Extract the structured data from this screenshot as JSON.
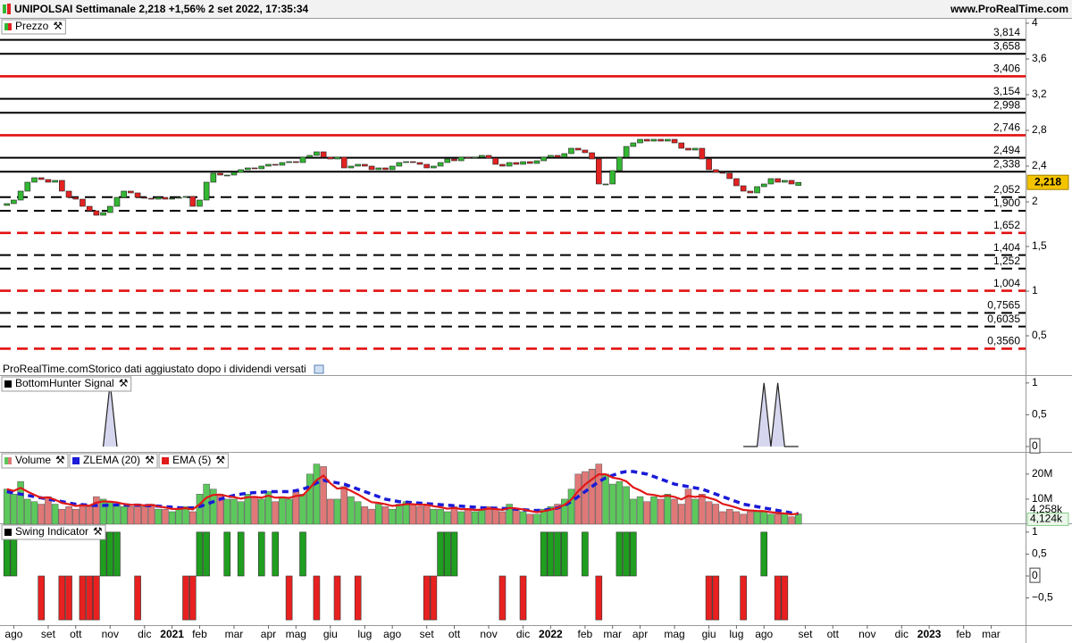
{
  "header": {
    "title": "UNIPOLSAI Settimanale 2,218 +1,56% 2 set 2022, 17:35:34",
    "site": "www.ProRealTime.com"
  },
  "chart_data": [
    {
      "type": "candlestick",
      "title": "Prezzo",
      "note": "ProRealTime.comStorico dati aggiustato dopo i dividendi versati",
      "up_color": "#33b833",
      "down_color": "#e32222",
      "xlim": [
        -1,
        148
      ],
      "ylim": [
        0.06,
        4.06
      ],
      "yticks": [
        4,
        {
          "value": 3.6,
          "label": "3,6"
        },
        {
          "value": 3.2,
          "label": "3,2"
        },
        {
          "value": 2.8,
          "label": "2,8"
        },
        {
          "value": 2.4,
          "label": "2,4"
        },
        2,
        {
          "value": 1.5,
          "label": "1,5"
        },
        1,
        {
          "value": 0.5,
          "label": "0,5"
        }
      ],
      "open": [
        1.96,
        1.98,
        2.02,
        2.12,
        2.22,
        2.27,
        2.25,
        2.22,
        2.24,
        2.12,
        2.05,
        2.03,
        1.95,
        1.9,
        1.85,
        1.88,
        1.95,
        2.05,
        2.12,
        2.1,
        2.05,
        2.04,
        2.03,
        2.05,
        2.03,
        2.04,
        2.05,
        2.06,
        1.95,
        2.02,
        2.22,
        2.32,
        2.3,
        2.3,
        2.33,
        2.36,
        2.38,
        2.37,
        2.4,
        2.42,
        2.41,
        2.44,
        2.45,
        2.44,
        2.5,
        2.52,
        2.56,
        2.5,
        2.48,
        2.5,
        2.38,
        2.4,
        2.42,
        2.4,
        2.36,
        2.38,
        2.36,
        2.4,
        2.44,
        2.45,
        2.44,
        2.42,
        2.38,
        2.4,
        2.44,
        2.48,
        2.46,
        2.5,
        2.49,
        2.5,
        2.52,
        2.49,
        2.42,
        2.4,
        2.44,
        2.42,
        2.45,
        2.43,
        2.46,
        2.5,
        2.52,
        2.5,
        2.54,
        2.6,
        2.58,
        2.55,
        2.48,
        2.2,
        2.2,
        2.35,
        2.5,
        2.62,
        2.66,
        2.7,
        2.68,
        2.7,
        2.68,
        2.7,
        2.66,
        2.6,
        2.58,
        2.6,
        2.48,
        2.36,
        2.33,
        2.32,
        2.26,
        2.18,
        2.12,
        2.1,
        2.17,
        2.2,
        2.26,
        2.22,
        2.24,
        2.184
      ],
      "close": [
        1.98,
        2.02,
        2.12,
        2.22,
        2.27,
        2.25,
        2.22,
        2.24,
        2.12,
        2.05,
        2.03,
        1.95,
        1.9,
        1.85,
        1.88,
        1.95,
        2.05,
        2.12,
        2.1,
        2.05,
        2.04,
        2.03,
        2.05,
        2.03,
        2.04,
        2.05,
        2.06,
        1.95,
        2.02,
        2.22,
        2.32,
        2.3,
        2.3,
        2.33,
        2.36,
        2.38,
        2.37,
        2.4,
        2.42,
        2.41,
        2.44,
        2.45,
        2.44,
        2.5,
        2.52,
        2.56,
        2.5,
        2.48,
        2.5,
        2.38,
        2.4,
        2.42,
        2.4,
        2.36,
        2.38,
        2.36,
        2.4,
        2.44,
        2.45,
        2.44,
        2.42,
        2.38,
        2.4,
        2.44,
        2.48,
        2.46,
        2.5,
        2.49,
        2.5,
        2.52,
        2.49,
        2.42,
        2.4,
        2.44,
        2.42,
        2.45,
        2.43,
        2.46,
        2.5,
        2.52,
        2.5,
        2.54,
        2.6,
        2.58,
        2.55,
        2.48,
        2.2,
        2.2,
        2.35,
        2.5,
        2.62,
        2.66,
        2.7,
        2.68,
        2.7,
        2.68,
        2.7,
        2.66,
        2.6,
        2.58,
        2.6,
        2.48,
        2.36,
        2.33,
        2.32,
        2.26,
        2.18,
        2.12,
        2.1,
        2.17,
        2.2,
        2.26,
        2.22,
        2.24,
        2.2,
        2.218
      ],
      "last_label": "2,218",
      "levels": [
        {
          "value": 3.814,
          "label": "3,814",
          "color": "#000000",
          "dashed": false
        },
        {
          "value": 3.658,
          "label": "3,658",
          "color": "#000000",
          "dashed": false
        },
        {
          "value": 3.406,
          "label": "3,406",
          "color": "#e31010",
          "dashed": false
        },
        {
          "value": 3.154,
          "label": "3,154",
          "color": "#000000",
          "dashed": false
        },
        {
          "value": 2.998,
          "label": "2,998",
          "color": "#000000",
          "dashed": false
        },
        {
          "value": 2.746,
          "label": "2,746",
          "color": "#e31010",
          "dashed": false
        },
        {
          "value": 2.494,
          "label": "2,494",
          "color": "#000000",
          "dashed": false
        },
        {
          "value": 2.338,
          "label": "2,338",
          "color": "#000000",
          "dashed": false
        },
        {
          "value": 2.052,
          "label": "2,052",
          "color": "#000000",
          "dashed": true
        },
        {
          "value": 1.9,
          "label": "1,900",
          "color": "#000000",
          "dashed": true
        },
        {
          "value": 1.652,
          "label": "1,652",
          "color": "#e31010",
          "dashed": true
        },
        {
          "value": 1.404,
          "label": "1,404",
          "color": "#000000",
          "dashed": true
        },
        {
          "value": 1.252,
          "label": "1,252",
          "color": "#000000",
          "dashed": true
        },
        {
          "value": 1.004,
          "label": "1,004",
          "color": "#e31010",
          "dashed": true
        },
        {
          "value": 0.7565,
          "label": "0,7565",
          "color": "#000000",
          "dashed": true
        },
        {
          "value": 0.6035,
          "label": "0,6035",
          "color": "#000000",
          "dashed": true
        },
        {
          "value": 0.356,
          "label": "0,3560",
          "color": "#e31010",
          "dashed": true
        }
      ]
    },
    {
      "type": "area",
      "title": "BottomHunter Signal",
      "color": "#d6d6ee",
      "ylim": [
        -0.07,
        1.11
      ],
      "yticks": [
        1,
        {
          "value": 0.5,
          "label": "0,5"
        },
        0
      ],
      "values": [
        null,
        null,
        null,
        null,
        null,
        null,
        null,
        null,
        null,
        null,
        null,
        null,
        null,
        null,
        0,
        1,
        0,
        null,
        null,
        null,
        null,
        null,
        null,
        null,
        null,
        null,
        null,
        null,
        null,
        null,
        null,
        null,
        null,
        null,
        null,
        null,
        null,
        null,
        null,
        null,
        null,
        null,
        null,
        null,
        null,
        null,
        null,
        null,
        null,
        null,
        null,
        null,
        null,
        null,
        null,
        null,
        null,
        null,
        null,
        null,
        null,
        null,
        null,
        null,
        null,
        null,
        null,
        null,
        null,
        null,
        null,
        null,
        null,
        null,
        null,
        null,
        null,
        null,
        null,
        null,
        null,
        null,
        null,
        null,
        null,
        null,
        null,
        null,
        null,
        null,
        null,
        null,
        null,
        null,
        null,
        null,
        null,
        null,
        null,
        null,
        null,
        null,
        null,
        null,
        null,
        null,
        null,
        0,
        0,
        0,
        1,
        0,
        1,
        0,
        0,
        0
      ]
    },
    {
      "type": "bar",
      "ylim": [
        0,
        28.5
      ],
      "yticks": [
        {
          "value": 20,
          "label": "20M"
        },
        {
          "value": 10,
          "label": "10M"
        }
      ],
      "series": [
        {
          "name": "Volume",
          "type": "bar",
          "last_label": "4,124k",
          "values": [
            14,
            12,
            17,
            10,
            9,
            8,
            11,
            8,
            6,
            7,
            6,
            8,
            7,
            11,
            10,
            9,
            8,
            7,
            7,
            8,
            7,
            8,
            6,
            6,
            5,
            6,
            7,
            5,
            12,
            16,
            14,
            12,
            10,
            10,
            9,
            12,
            11,
            10,
            13,
            9,
            11,
            10,
            13,
            12,
            20,
            24,
            23,
            10,
            10,
            15,
            11,
            9,
            7,
            6,
            8,
            7,
            6,
            8,
            9,
            8,
            7,
            8,
            6,
            6,
            5,
            7,
            5,
            6,
            5,
            6,
            7,
            6,
            5,
            8,
            6,
            5,
            4,
            4,
            6,
            7,
            8,
            10,
            14,
            20,
            21,
            22,
            24,
            20,
            16,
            17,
            15,
            10,
            11,
            9,
            11,
            10,
            12,
            10,
            8,
            14,
            10,
            12,
            9,
            8,
            5,
            6,
            5,
            4,
            5,
            5,
            5,
            4,
            4,
            4,
            3,
            4.124
          ]
        },
        {
          "name": "ZLEMA (20)",
          "type": "line",
          "color": "#1a1ad8",
          "dashed": true,
          "values": [
            13,
            12.5,
            12,
            11.5,
            11,
            10.5,
            10,
            9.5,
            9,
            8.5,
            8,
            7.8,
            7.6,
            7.5,
            7.5,
            7.6,
            7.7,
            7.7,
            7.6,
            7.6,
            7.5,
            7.4,
            7.2,
            7,
            6.8,
            6.6,
            6.5,
            6.5,
            7,
            8,
            9,
            10,
            10.8,
            11.5,
            12,
            12.4,
            12.6,
            12.8,
            13,
            13,
            13,
            13,
            13.4,
            14,
            15,
            16.5,
            17.5,
            17,
            16.5,
            16,
            15,
            14,
            13,
            12,
            11,
            10,
            9.5,
            9,
            8.8,
            8.6,
            8.4,
            8.2,
            8,
            7.8,
            7.6,
            7.4,
            7.2,
            7,
            6.8,
            6.6,
            6.5,
            6.4,
            6.3,
            6.2,
            6,
            5.8,
            5.6,
            5.5,
            5.6,
            6,
            6.5,
            7.5,
            9,
            11,
            13,
            15,
            17,
            18.5,
            19.5,
            20.5,
            21,
            21,
            20.5,
            20,
            19,
            18,
            17,
            16,
            15.5,
            15,
            14.5,
            14,
            13,
            12,
            11,
            10,
            9,
            8,
            7.5,
            7,
            6.5,
            6,
            5.5,
            5,
            4.5,
            4.2
          ]
        },
        {
          "name": "EMA (5)",
          "type": "line",
          "color": "#e01818",
          "dashed": false,
          "last_label": "4,258k",
          "values": [
            14,
            13.3,
            14.5,
            13,
            11.7,
            10.5,
            10.7,
            9.8,
            8.5,
            8,
            7.3,
            7.5,
            7.4,
            8.6,
            9.1,
            9,
            8.7,
            8.1,
            7.7,
            7.8,
            7.5,
            7.7,
            7.1,
            6.7,
            6.1,
            6.1,
            6.4,
            5.9,
            7.9,
            10.6,
            11.7,
            11.8,
            11.2,
            10.8,
            10.2,
            10.8,
            10.9,
            10.6,
            11.4,
            10.6,
            10.7,
            10.5,
            11.3,
            11.5,
            14.4,
            17.6,
            19.4,
            16.3,
            14.2,
            14.5,
            13.3,
            11.9,
            10.3,
            8.8,
            8.5,
            8,
            7.3,
            7.6,
            8,
            8,
            7.7,
            7.8,
            7.2,
            6.8,
            6.2,
            6.5,
            6,
            6,
            5.7,
            5.8,
            6.2,
            6.1,
            5.7,
            6.5,
            6.3,
            5.9,
            5.3,
            4.8,
            5.2,
            5.8,
            6.5,
            7.7,
            9.8,
            13.2,
            15.8,
            17.9,
            19.9,
            19.9,
            18.6,
            18.1,
            17.1,
            14.7,
            13.5,
            12,
            11.7,
            11.1,
            11.4,
            10.9,
            9.9,
            11.3,
            10.9,
            11.3,
            10.5,
            9.7,
            8.1,
            7.4,
            6.6,
            5.7,
            5.5,
            5.3,
            5.2,
            4.8,
            4.5,
            4.3,
            3.9,
            4.258
          ]
        }
      ]
    },
    {
      "type": "bar",
      "title": "Swing Indicator",
      "up_color": "#1f9e1f",
      "down_color": "#e82020",
      "ylim": [
        -1.12,
        1.18
      ],
      "yticks": [
        1,
        {
          "value": 0.5,
          "label": "0,5"
        },
        0,
        {
          "value": -0.5,
          "label": "−0,5"
        }
      ],
      "values": [
        1,
        1,
        0,
        0,
        0,
        -1,
        0,
        0,
        -1,
        -1,
        0,
        -1,
        -1,
        -1,
        1,
        1,
        1,
        0,
        0,
        -1,
        0,
        0,
        0,
        0,
        0,
        0,
        -1,
        -1,
        1,
        1,
        0,
        0,
        1,
        0,
        1,
        0,
        0,
        1,
        0,
        1,
        0,
        -1,
        0,
        1,
        0,
        -1,
        0,
        0,
        -1,
        0,
        0,
        -1,
        0,
        0,
        0,
        0,
        0,
        0,
        0,
        0,
        0,
        -1,
        -1,
        1,
        1,
        1,
        0,
        0,
        0,
        0,
        0,
        0,
        -1,
        0,
        0,
        -1,
        0,
        0,
        1,
        1,
        1,
        1,
        0,
        0,
        1,
        0,
        -1,
        0,
        0,
        1,
        1,
        1,
        0,
        0,
        0,
        0,
        0,
        0,
        0,
        0,
        0,
        0,
        -1,
        -1,
        0,
        0,
        0,
        -1,
        0,
        0,
        1,
        0,
        -1,
        -1,
        0,
        0
      ],
      "xticks": [
        {
          "value": 1,
          "label": "ago"
        },
        {
          "value": 6,
          "label": "set"
        },
        {
          "value": 10,
          "label": "ott"
        },
        {
          "value": 15,
          "label": "nov"
        },
        {
          "value": 20,
          "label": "dic"
        },
        {
          "value": 24,
          "label": "2021"
        },
        {
          "value": 28,
          "label": "feb"
        },
        {
          "value": 33,
          "label": "mar"
        },
        {
          "value": 38,
          "label": "apr"
        },
        {
          "value": 42,
          "label": "mag"
        },
        {
          "value": 47,
          "label": "giu"
        },
        {
          "value": 52,
          "label": "lug"
        },
        {
          "value": 56,
          "label": "ago"
        },
        {
          "value": 61,
          "label": "set"
        },
        {
          "value": 65,
          "label": "ott"
        },
        {
          "value": 70,
          "label": "nov"
        },
        {
          "value": 75,
          "label": "dic"
        },
        {
          "value": 79,
          "label": "2022"
        },
        {
          "value": 84,
          "label": "feb"
        },
        {
          "value": 88,
          "label": "mar"
        },
        {
          "value": 92,
          "label": "apr"
        },
        {
          "value": 97,
          "label": "mag"
        },
        {
          "value": 102,
          "label": "giu"
        },
        {
          "value": 106,
          "label": "lug"
        },
        {
          "value": 110,
          "label": "ago"
        },
        {
          "value": 116,
          "label": "set"
        },
        {
          "value": 120,
          "label": "ott"
        },
        {
          "value": 125,
          "label": "nov"
        },
        {
          "value": 130,
          "label": "dic"
        },
        {
          "value": 134,
          "label": "2023"
        },
        {
          "value": 139,
          "label": "feb"
        },
        {
          "value": 143,
          "label": "mar"
        }
      ]
    }
  ]
}
